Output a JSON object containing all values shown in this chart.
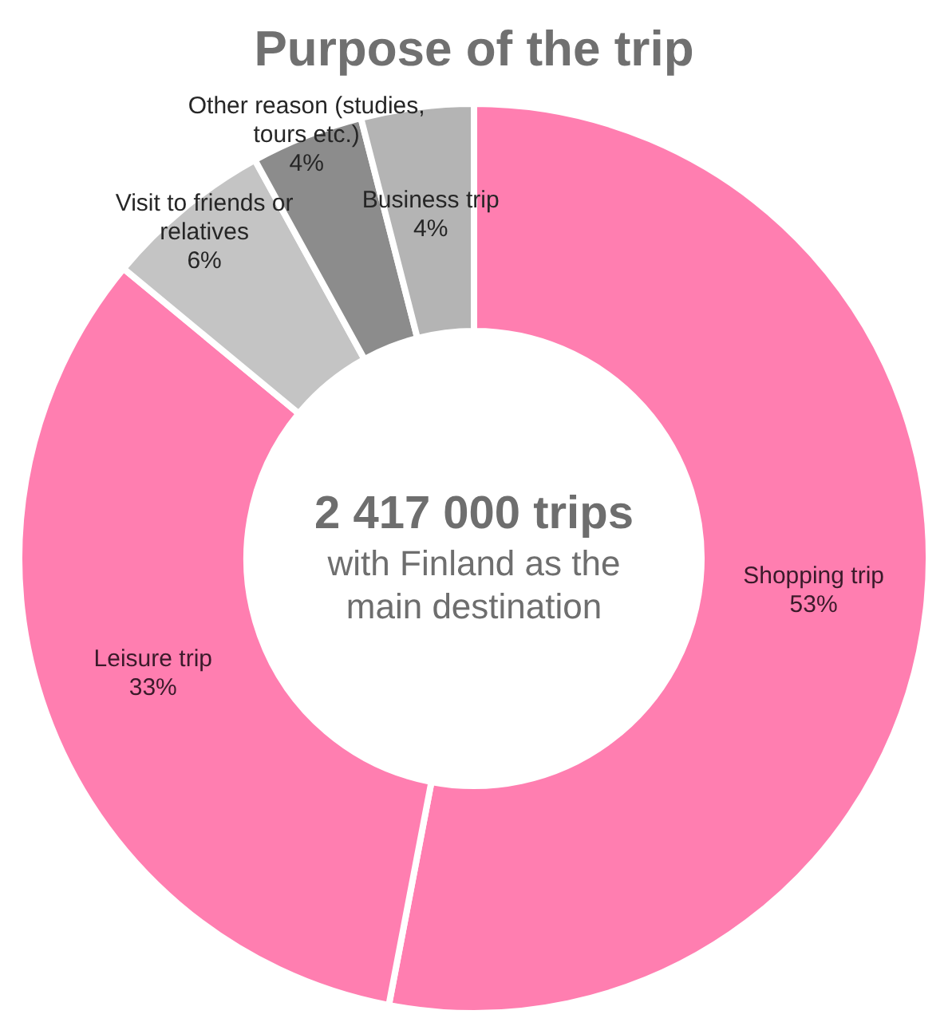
{
  "chart_data": {
    "type": "donut",
    "title": "Purpose of the trip",
    "categories": [
      "Shopping trip",
      "Leisure trip",
      "Visit to friends or relatives",
      "Other reason (studies, tours etc.)",
      "Business trip"
    ],
    "values": [
      53,
      33,
      6,
      4,
      4
    ],
    "value_labels": [
      "53%",
      "33%",
      "6%",
      "4%",
      "4%"
    ],
    "colors": [
      "#ff7eb0",
      "#ff7eb0",
      "#c4c4c4",
      "#8c8c8c",
      "#b4b4b4"
    ],
    "annotations": [
      "2 417 000 trips",
      "with Finland as the main destination"
    ],
    "legend": false
  }
}
